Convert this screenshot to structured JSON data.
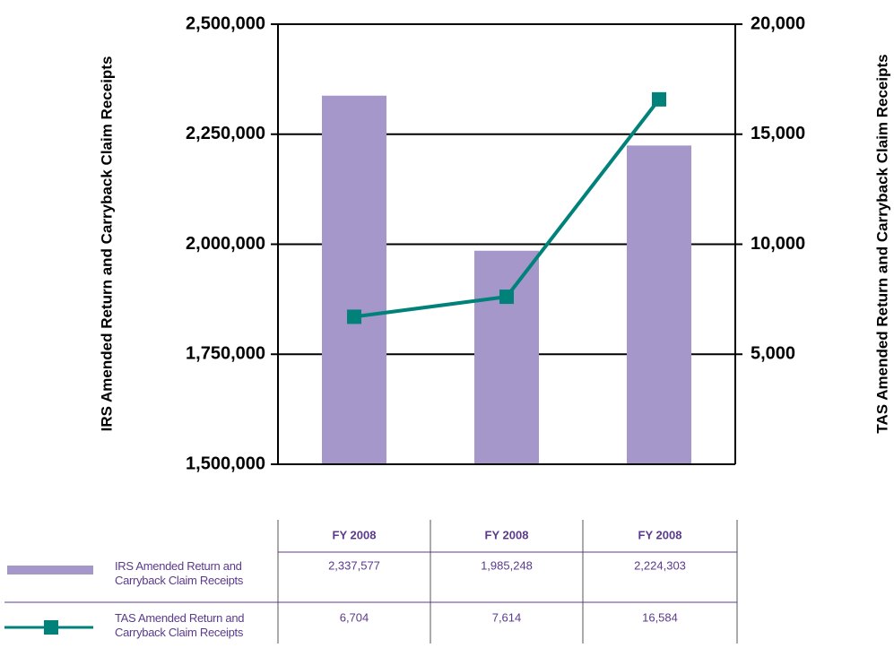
{
  "chart_data": {
    "type": "bar-line",
    "categories": [
      "FY 2008",
      "FY 2008",
      "FY 2008"
    ],
    "ylabel": "IRS Amended Return and Carryback Claim Receipts",
    "y2label": "TAS Amended Return and Carryback Claim Receipts",
    "ylim": [
      1500000,
      2500000
    ],
    "yticks": [
      {
        "value": 1500000,
        "label": "1,500,000"
      },
      {
        "value": 1750000,
        "label": "1,750,000"
      },
      {
        "value": 2000000,
        "label": "2,000,000"
      },
      {
        "value": 2250000,
        "label": "2,250,000"
      },
      {
        "value": 2500000,
        "label": "2,500,000"
      }
    ],
    "y2lim": [
      0,
      20000
    ],
    "y2ticks": [
      {
        "value": 5000,
        "label": "5,000"
      },
      {
        "value": 10000,
        "label": "10,000"
      },
      {
        "value": 15000,
        "label": "15,000"
      },
      {
        "value": 20000,
        "label": "20,000"
      }
    ],
    "grid": true,
    "series": [
      {
        "name": "IRS Amended Return and Carryback Claim Receipts",
        "type": "bar",
        "color": "#a597c9",
        "values": [
          2337577,
          1985248,
          2224303
        ],
        "value_labels": [
          "2,337,577",
          "1,985,248",
          "2,224,303"
        ]
      },
      {
        "name": "TAS Amended Return and Carryback Claim Receipts",
        "type": "line",
        "axis": "y2",
        "color": "#00827a",
        "values": [
          6704,
          7614,
          16584
        ],
        "value_labels": [
          "6,704",
          "7,614",
          "16,584"
        ]
      }
    ]
  }
}
